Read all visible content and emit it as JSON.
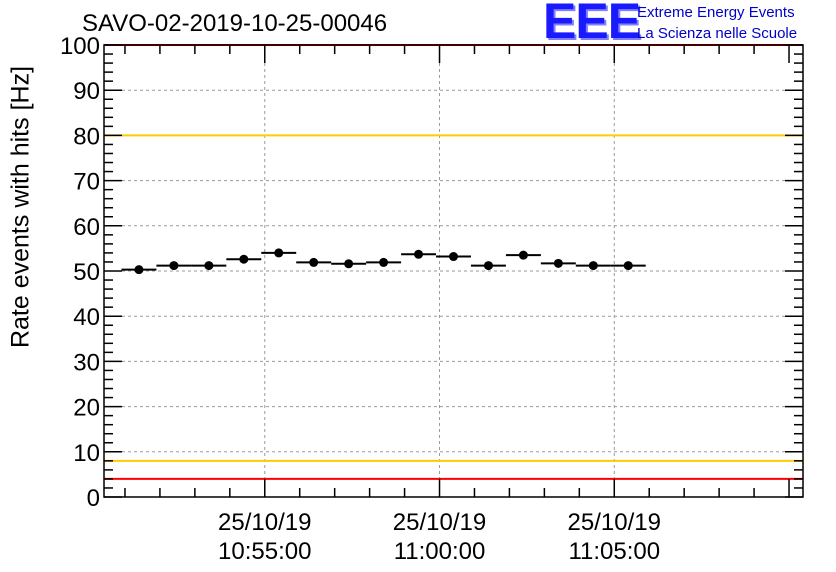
{
  "title": "SAVO-02-2019-10-25-00046",
  "logo": {
    "mark": "EEE",
    "line1": "Extreme Energy Events",
    "line2": "La Scienza nelle Scuole"
  },
  "chart_data": {
    "type": "scatter",
    "title": "SAVO-02-2019-10-25-00046",
    "xlabel": "",
    "ylabel": "Rate events with hits [Hz]",
    "ylim": [
      0,
      100
    ],
    "yticks": [
      0,
      10,
      20,
      30,
      40,
      50,
      60,
      70,
      80,
      90,
      100
    ],
    "xlim_minutes": [
      -9.6,
      10.4
    ],
    "xticks": [
      {
        "minute": -5,
        "date": "25/10/19",
        "time": "10:55:00"
      },
      {
        "minute": 0,
        "date": "25/10/19",
        "time": "11:00:00"
      },
      {
        "minute": 5,
        "date": "25/10/19",
        "time": "11:05:00"
      }
    ],
    "x_reference": "25/10/19 11:00:00",
    "series": [
      {
        "name": "rate",
        "bin_width_minutes": 1,
        "points": [
          {
            "x": -8.6,
            "y": 50.3
          },
          {
            "x": -7.6,
            "y": 51.2
          },
          {
            "x": -6.6,
            "y": 51.2
          },
          {
            "x": -5.6,
            "y": 52.6
          },
          {
            "x": -4.6,
            "y": 54.0
          },
          {
            "x": -3.6,
            "y": 51.9
          },
          {
            "x": -2.6,
            "y": 51.6
          },
          {
            "x": -1.6,
            "y": 51.9
          },
          {
            "x": -0.6,
            "y": 53.7
          },
          {
            "x": 0.4,
            "y": 53.2
          },
          {
            "x": 1.4,
            "y": 51.2
          },
          {
            "x": 2.4,
            "y": 53.5
          },
          {
            "x": 3.4,
            "y": 51.7
          },
          {
            "x": 4.4,
            "y": 51.2
          },
          {
            "x": 5.4,
            "y": 51.2
          }
        ]
      }
    ],
    "reference_lines": [
      {
        "name": "red-upper",
        "y": 100,
        "color": "#ff0000"
      },
      {
        "name": "yellow-upper",
        "y": 80,
        "color": "#ffcc00"
      },
      {
        "name": "yellow-lower",
        "y": 8,
        "color": "#ffcc00"
      },
      {
        "name": "red-lower",
        "y": 4,
        "color": "#ff0000"
      }
    ],
    "grid": true
  }
}
